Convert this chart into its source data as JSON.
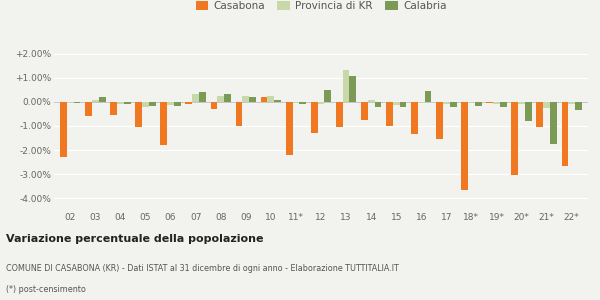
{
  "categories": [
    "02",
    "03",
    "04",
    "05",
    "06",
    "07",
    "08",
    "09",
    "10",
    "11*",
    "12",
    "13",
    "14",
    "15",
    "16",
    "17",
    "18*",
    "19*",
    "20*",
    "21*",
    "22*"
  ],
  "casabona": [
    -2.3,
    -0.6,
    -0.55,
    -1.05,
    -1.8,
    -0.1,
    -0.3,
    -1.0,
    0.2,
    -2.2,
    -1.3,
    -1.05,
    -0.75,
    -1.0,
    -1.35,
    -1.55,
    -3.65,
    -0.05,
    -3.05,
    -1.05,
    -2.65
  ],
  "provincia_kr": [
    -0.05,
    0.1,
    -0.1,
    -0.2,
    -0.12,
    0.35,
    0.25,
    0.25,
    0.25,
    -0.05,
    -0.08,
    1.35,
    0.1,
    -0.12,
    -0.05,
    -0.1,
    -0.05,
    -0.1,
    -0.1,
    -0.25,
    -0.1
  ],
  "calabria": [
    -0.05,
    0.2,
    -0.1,
    -0.15,
    -0.18,
    0.42,
    0.32,
    0.22,
    0.1,
    -0.08,
    0.5,
    1.1,
    -0.2,
    -0.2,
    0.45,
    -0.2,
    -0.18,
    -0.22,
    -0.8,
    -1.75,
    -0.32
  ],
  "color_casabona": "#f07820",
  "color_provincia": "#c8d8a8",
  "color_calabria": "#7a9a55",
  "title": "Variazione percentuale della popolazione",
  "subtitle": "COMUNE DI CASABONA (KR) - Dati ISTAT al 31 dicembre di ogni anno - Elaborazione TUTTITALIA.IT",
  "footnote": "(*) post-censimento",
  "legend_labels": [
    "Casabona",
    "Provincia di KR",
    "Calabria"
  ],
  "ylim": [
    -4.5,
    2.5
  ],
  "yticks": [
    -4.0,
    -3.0,
    -2.0,
    -1.0,
    0.0,
    1.0,
    2.0
  ],
  "ytick_labels": [
    "-4.00%",
    "-3.00%",
    "-2.00%",
    "-1.00%",
    "0.00%",
    "+1.00%",
    "+2.00%"
  ],
  "bg_color": "#f2f2ee",
  "bar_width": 0.27
}
